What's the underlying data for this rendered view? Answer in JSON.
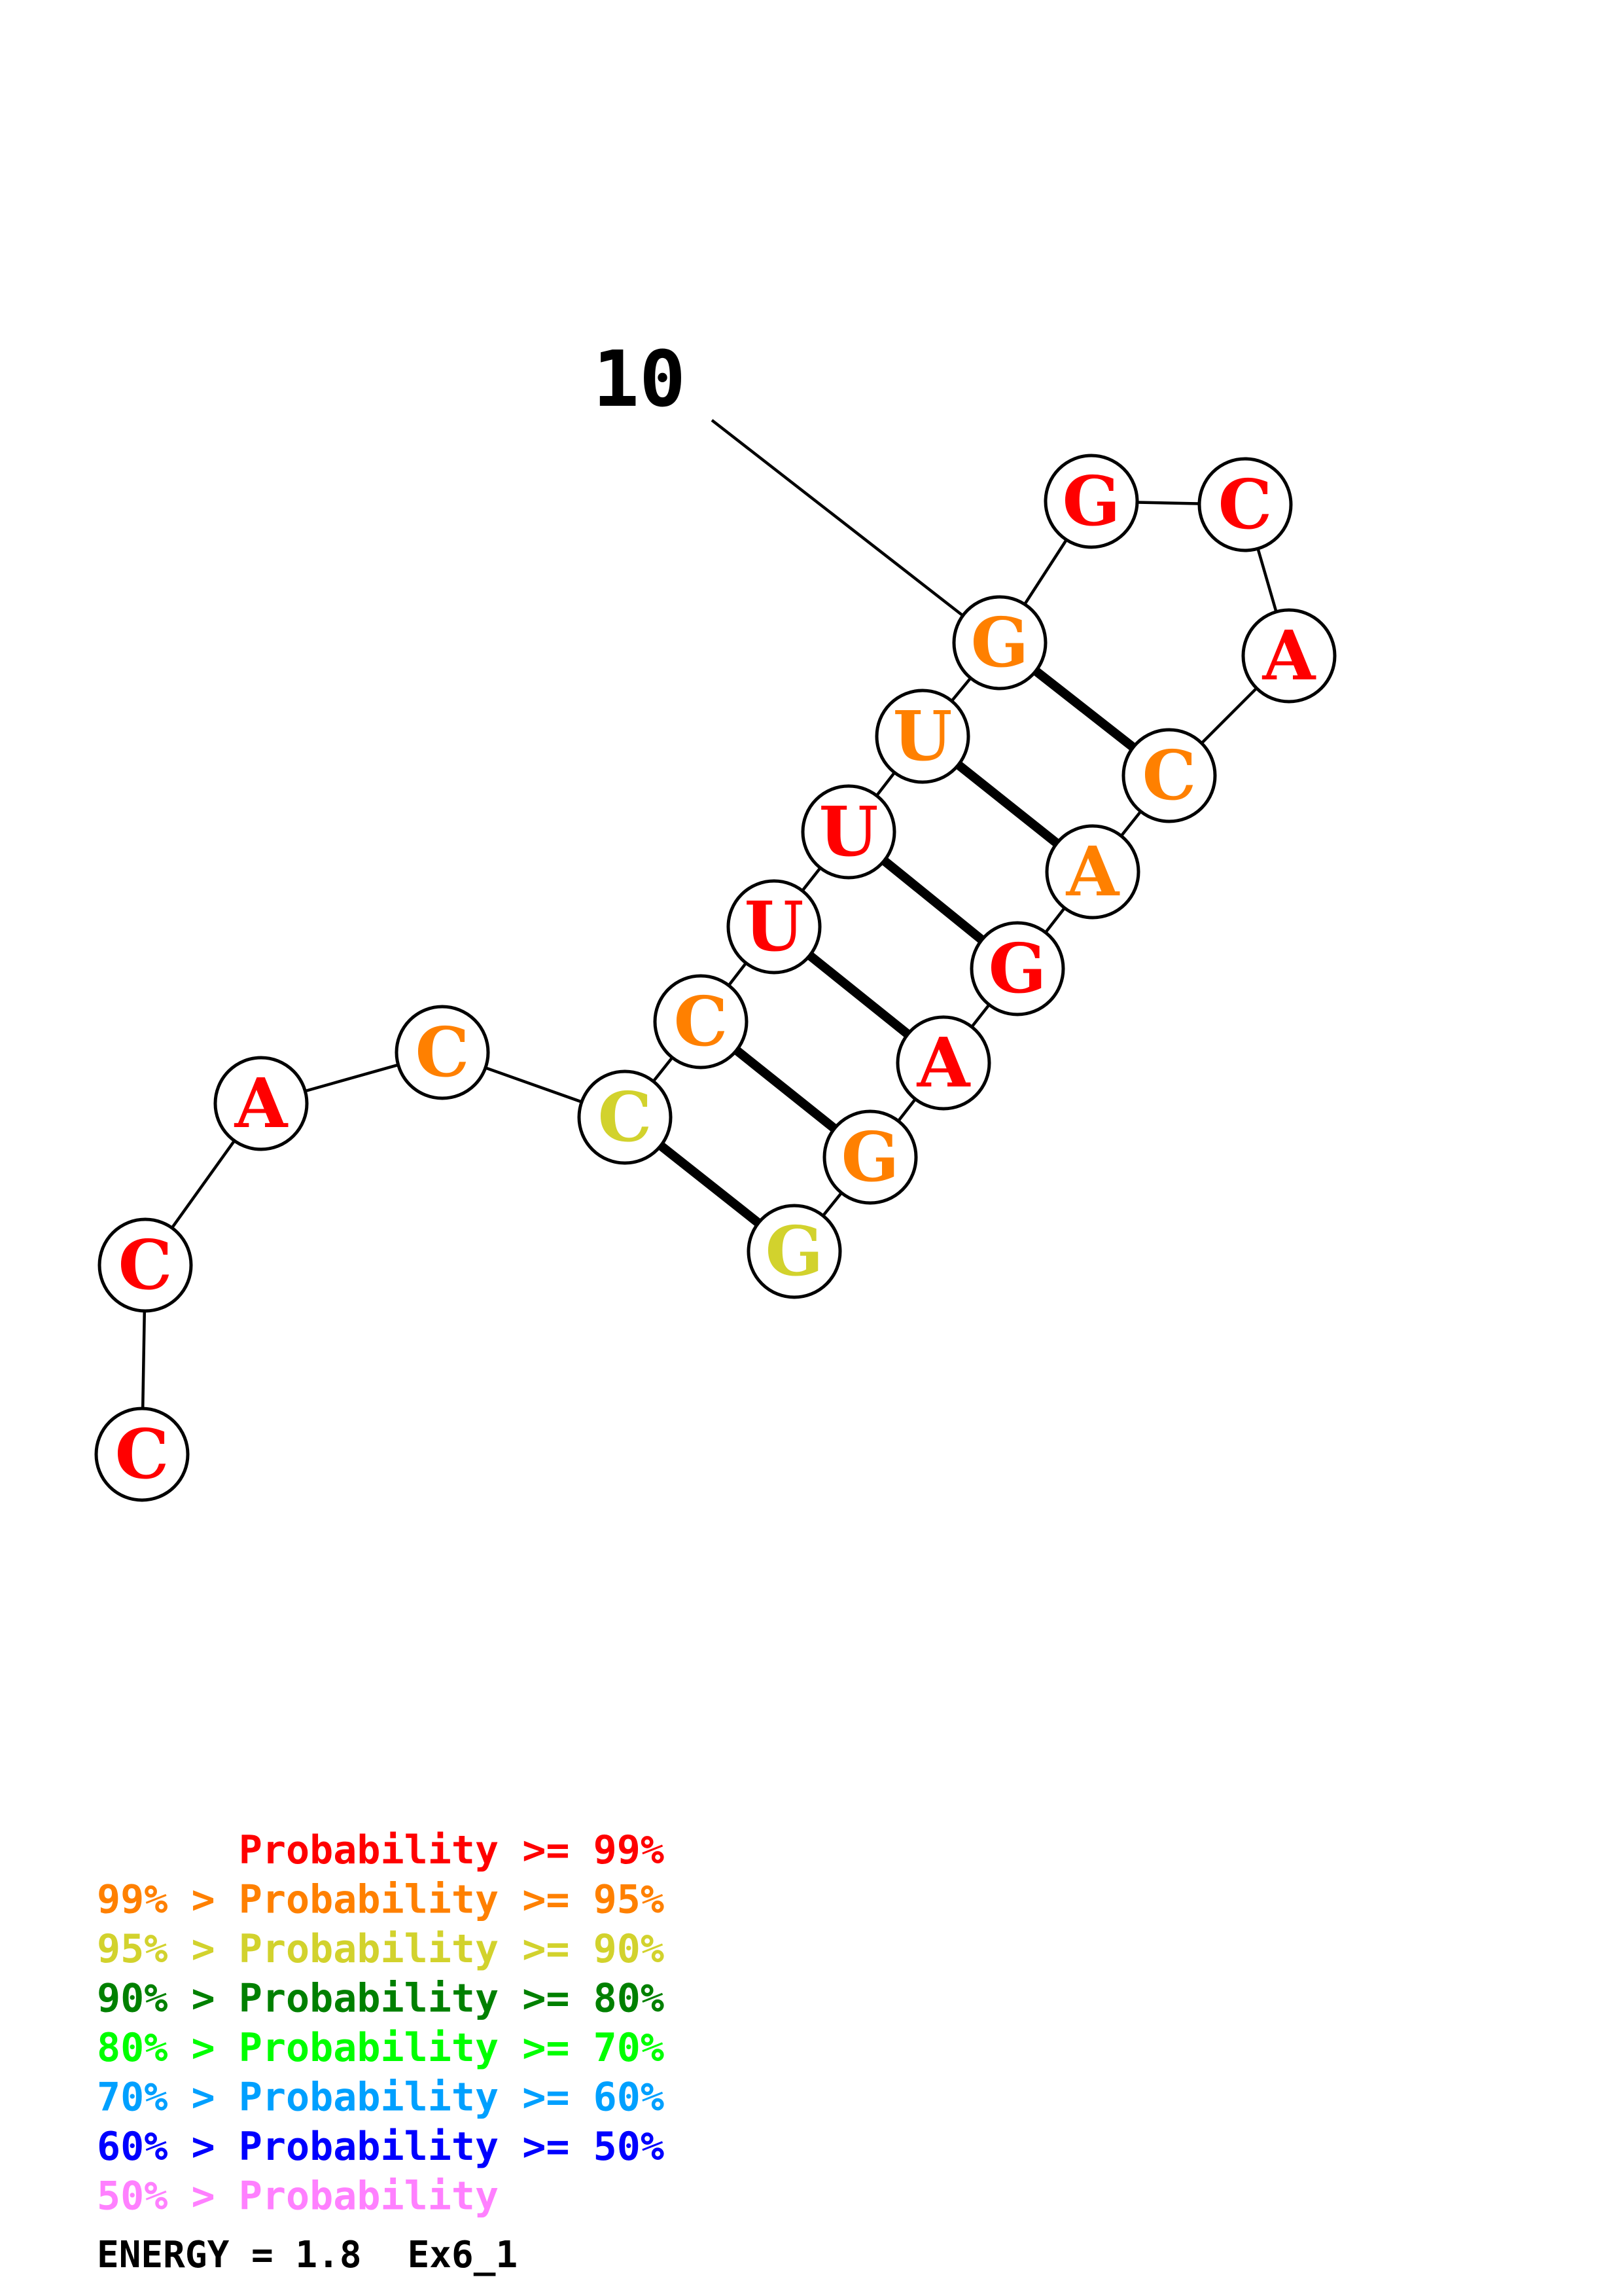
{
  "sequence": [
    {
      "base": "C",
      "color": "#ff0000"
    },
    {
      "base": "C",
      "color": "#ff0000"
    },
    {
      "base": "A",
      "color": "#ff0000"
    },
    {
      "base": "C",
      "color": "#ff8000"
    },
    {
      "base": "C",
      "color": "#d2d22d"
    },
    {
      "base": "C",
      "color": "#ff8000"
    },
    {
      "base": "U",
      "color": "#ff0000"
    },
    {
      "base": "U",
      "color": "#ff0000"
    },
    {
      "base": "U",
      "color": "#ff8000"
    },
    {
      "base": "G",
      "color": "#ff8000"
    },
    {
      "base": "G",
      "color": "#ff0000"
    },
    {
      "base": "C",
      "color": "#ff0000"
    },
    {
      "base": "A",
      "color": "#ff0000"
    },
    {
      "base": "C",
      "color": "#ff8000"
    },
    {
      "base": "A",
      "color": "#ff8000"
    },
    {
      "base": "G",
      "color": "#ff0000"
    },
    {
      "base": "A",
      "color": "#ff0000"
    },
    {
      "base": "G",
      "color": "#ff8000"
    },
    {
      "base": "G",
      "color": "#d2d22d"
    }
  ],
  "pairs": [
    [
      5,
      19
    ],
    [
      6,
      18
    ],
    [
      7,
      17
    ],
    [
      8,
      16
    ],
    [
      9,
      15
    ],
    [
      10,
      14
    ]
  ],
  "position_marker": {
    "index": 10,
    "label": "10"
  },
  "legend": [
    {
      "prefix": "    ",
      "text": "Probability >= 99%",
      "color": "#ff0000"
    },
    {
      "prefix": "99% > ",
      "text": "Probability >= 95%",
      "color": "#ff8000"
    },
    {
      "prefix": "95% > ",
      "text": "Probability >= 90%",
      "color": "#d2d22d"
    },
    {
      "prefix": "90% > ",
      "text": "Probability >= 80%",
      "color": "#008000"
    },
    {
      "prefix": "80% > ",
      "text": "Probability >= 70%",
      "color": "#00ff00"
    },
    {
      "prefix": "70% > ",
      "text": "Probability >= 60%",
      "color": "#00a0ff"
    },
    {
      "prefix": "60% > ",
      "text": "Probability >= 50%",
      "color": "#0000ff"
    },
    {
      "prefix": "50% > ",
      "text": "Probability",
      "color": "#ff80ff"
    }
  ],
  "footer": {
    "energy": "ENERGY = 1.8",
    "name": "Ex6_1"
  }
}
